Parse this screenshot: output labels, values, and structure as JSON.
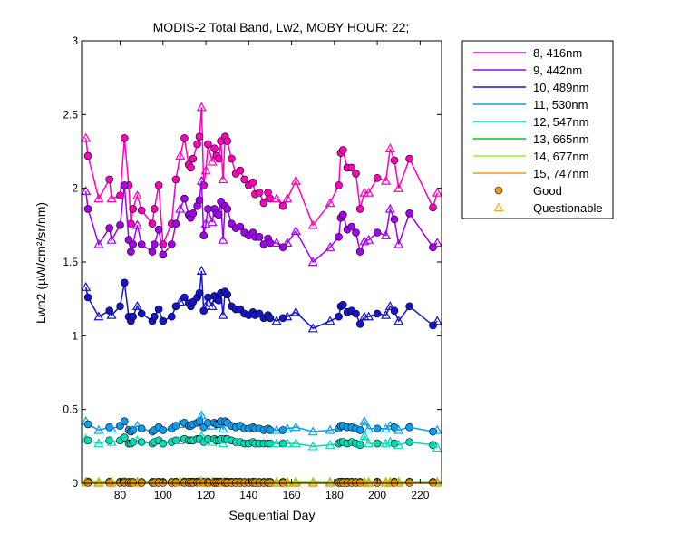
{
  "chart_data": {
    "type": "line",
    "title": "MODIS-2 Total Band, Lw2, MOBY HOUR: 22;",
    "xlabel": "Sequential Day",
    "ylabel": "Lwn2 (µW/cm²/sr/nm)",
    "xlim": [
      62,
      230
    ],
    "ylim": [
      0,
      3
    ],
    "xticks": [
      "80",
      "100",
      "120",
      "140",
      "160",
      "180",
      "200",
      "220"
    ],
    "xtick_values": [
      80,
      100,
      120,
      140,
      160,
      180,
      200,
      220
    ],
    "yticks": [
      "0",
      "0.5",
      "1",
      "1.5",
      "2",
      "2.5",
      "3"
    ],
    "ytick_values": [
      0,
      0.5,
      1,
      1.5,
      2,
      2.5,
      3
    ],
    "grid": false,
    "legend_position": "outside-top-right",
    "x": [
      64,
      65,
      70,
      75,
      76,
      80,
      82,
      84,
      85,
      86,
      88,
      90,
      95,
      96,
      98,
      100,
      104,
      106,
      108,
      110,
      112,
      113,
      114,
      116,
      117,
      118,
      119,
      120,
      121,
      123,
      124,
      125,
      126,
      127,
      128,
      129,
      130,
      132,
      134,
      136,
      138,
      140,
      142,
      143,
      145,
      147,
      149,
      150,
      153,
      156,
      158,
      162,
      170,
      178,
      182,
      183,
      184,
      186,
      188,
      190,
      192,
      194,
      196,
      200,
      204,
      206,
      208,
      210,
      215,
      226,
      228
    ],
    "series": [
      {
        "name": "8, 416nm",
        "color": "#ff00bb",
        "values": [
          2.34,
          2.22,
          1.93,
          2.06,
          1.93,
          1.95,
          2.34,
          2.02,
          1.76,
          1.86,
          1.95,
          1.85,
          1.76,
          1.86,
          2.02,
          1.62,
          1.76,
          2.06,
          2.22,
          2.34,
          2.16,
          2.14,
          2.2,
          2.3,
          2.35,
          2.55,
          2.02,
          2.12,
          2.3,
          2.18,
          2.27,
          2.22,
          2.2,
          2.32,
          2.06,
          2.35,
          2.32,
          2.2,
          2.1,
          2.12,
          2.06,
          2.02,
          2.04,
          1.96,
          1.97,
          1.9,
          1.97,
          1.93,
          1.93,
          1.88,
          1.93,
          2.05,
          1.75,
          1.9,
          2.02,
          2.24,
          2.26,
          2.14,
          2.14,
          2.1,
          1.86,
          1.97,
          1.97,
          2.07,
          2.05,
          2.27,
          2.19,
          2.0,
          2.2,
          1.87,
          1.97
        ]
      },
      {
        "name": "9, 442nm",
        "color": "#a400ee",
        "values": [
          1.98,
          1.86,
          1.62,
          1.73,
          1.65,
          1.75,
          2.02,
          1.65,
          1.57,
          1.62,
          1.75,
          1.62,
          1.57,
          1.62,
          1.72,
          1.55,
          1.62,
          1.76,
          1.86,
          1.93,
          1.82,
          1.8,
          1.83,
          1.88,
          1.92,
          2.05,
          1.68,
          1.76,
          1.86,
          1.77,
          1.86,
          1.83,
          1.82,
          1.91,
          1.65,
          1.88,
          1.86,
          1.76,
          1.73,
          1.74,
          1.7,
          1.68,
          1.7,
          1.67,
          1.67,
          1.62,
          1.66,
          1.63,
          1.63,
          1.6,
          1.63,
          1.71,
          1.5,
          1.6,
          1.67,
          1.8,
          1.82,
          1.72,
          1.74,
          1.7,
          1.57,
          1.64,
          1.65,
          1.7,
          1.68,
          1.86,
          1.79,
          1.62,
          1.83,
          1.6,
          1.63
        ]
      },
      {
        "name": "10, 489nm",
        "color": "#1515cc",
        "values": [
          1.33,
          1.26,
          1.13,
          1.17,
          1.14,
          1.2,
          1.36,
          1.13,
          1.1,
          1.13,
          1.2,
          1.15,
          1.1,
          1.13,
          1.18,
          1.1,
          1.13,
          1.2,
          1.23,
          1.26,
          1.22,
          1.2,
          1.23,
          1.26,
          1.29,
          1.44,
          1.17,
          1.2,
          1.26,
          1.2,
          1.27,
          1.25,
          1.24,
          1.29,
          1.14,
          1.3,
          1.28,
          1.2,
          1.18,
          1.18,
          1.15,
          1.14,
          1.16,
          1.14,
          1.15,
          1.12,
          1.14,
          1.12,
          1.1,
          1.12,
          1.13,
          1.16,
          1.05,
          1.1,
          1.13,
          1.2,
          1.21,
          1.16,
          1.17,
          1.15,
          1.08,
          1.13,
          1.13,
          1.15,
          1.14,
          1.2,
          1.17,
          1.1,
          1.2,
          1.07,
          1.1
        ]
      },
      {
        "name": "11, 530nm",
        "color": "#0a9eee",
        "values": [
          0.42,
          0.4,
          0.36,
          0.38,
          0.37,
          0.39,
          0.42,
          0.36,
          0.35,
          0.36,
          0.39,
          0.37,
          0.35,
          0.36,
          0.38,
          0.36,
          0.37,
          0.39,
          0.4,
          0.41,
          0.39,
          0.39,
          0.4,
          0.41,
          0.42,
          0.46,
          0.38,
          0.39,
          0.41,
          0.39,
          0.41,
          0.4,
          0.4,
          0.42,
          0.37,
          0.42,
          0.41,
          0.39,
          0.38,
          0.39,
          0.37,
          0.37,
          0.38,
          0.37,
          0.37,
          0.36,
          0.37,
          0.36,
          0.36,
          0.36,
          0.37,
          0.38,
          0.35,
          0.36,
          0.37,
          0.39,
          0.39,
          0.38,
          0.38,
          0.37,
          0.36,
          0.42,
          0.37,
          0.37,
          0.37,
          0.39,
          0.38,
          0.36,
          0.38,
          0.35,
          0.36
        ]
      },
      {
        "name": "12, 547nm",
        "color": "#00ddb6",
        "values": [
          0.3,
          0.29,
          0.27,
          0.29,
          0.28,
          0.29,
          0.31,
          0.27,
          0.27,
          0.28,
          0.29,
          0.28,
          0.27,
          0.28,
          0.29,
          0.27,
          0.28,
          0.29,
          0.29,
          0.3,
          0.29,
          0.29,
          0.29,
          0.3,
          0.3,
          0.32,
          0.28,
          0.29,
          0.3,
          0.28,
          0.3,
          0.29,
          0.29,
          0.3,
          0.27,
          0.3,
          0.3,
          0.29,
          0.28,
          0.28,
          0.27,
          0.27,
          0.28,
          0.27,
          0.27,
          0.27,
          0.27,
          0.27,
          0.27,
          0.27,
          0.27,
          0.27,
          0.25,
          0.26,
          0.27,
          0.28,
          0.28,
          0.27,
          0.28,
          0.27,
          0.26,
          0.32,
          0.27,
          0.27,
          0.27,
          0.28,
          0.27,
          0.26,
          0.28,
          0.26,
          0.24
        ]
      },
      {
        "name": "13, 665nm",
        "color": "#00cc22",
        "values": [
          0.012,
          0.012,
          0.01,
          0.011,
          0.01,
          0.011,
          0.013,
          0.01,
          0.01,
          0.01,
          0.011,
          0.01,
          0.01,
          0.01,
          0.011,
          0.01,
          0.01,
          0.011,
          0.012,
          0.012,
          0.011,
          0.011,
          0.012,
          0.012,
          0.013,
          0.014,
          0.011,
          0.011,
          0.012,
          0.011,
          0.012,
          0.012,
          0.011,
          0.012,
          0.01,
          0.012,
          0.012,
          0.011,
          0.011,
          0.011,
          0.01,
          0.01,
          0.011,
          0.01,
          0.01,
          0.01,
          0.01,
          0.01,
          0.01,
          0.01,
          0.01,
          0.011,
          0.009,
          0.01,
          0.01,
          0.011,
          0.011,
          0.011,
          0.011,
          0.01,
          0.01,
          0.011,
          0.01,
          0.011,
          0.01,
          0.011,
          0.011,
          0.01,
          0.011,
          0.01,
          0.01
        ]
      },
      {
        "name": "14, 677nm",
        "color": "#aaee22",
        "values": [
          0.01,
          0.01,
          0.009,
          0.009,
          0.009,
          0.009,
          0.011,
          0.009,
          0.008,
          0.009,
          0.009,
          0.009,
          0.008,
          0.009,
          0.009,
          0.008,
          0.009,
          0.009,
          0.01,
          0.01,
          0.009,
          0.009,
          0.01,
          0.01,
          0.011,
          0.012,
          0.009,
          0.009,
          0.01,
          0.009,
          0.01,
          0.01,
          0.009,
          0.01,
          0.009,
          0.01,
          0.01,
          0.009,
          0.009,
          0.009,
          0.009,
          0.009,
          0.009,
          0.009,
          0.009,
          0.008,
          0.009,
          0.008,
          0.008,
          0.008,
          0.009,
          0.009,
          0.008,
          0.008,
          0.009,
          0.009,
          0.009,
          0.009,
          0.009,
          0.009,
          0.008,
          0.009,
          0.009,
          0.009,
          0.009,
          0.009,
          0.009,
          0.008,
          0.009,
          0.008,
          0.008
        ]
      },
      {
        "name": "15, 747nm",
        "color": "#ee9911",
        "values": [
          0.004,
          0.004,
          0.003,
          0.003,
          0.003,
          0.003,
          0.004,
          0.003,
          0.003,
          0.003,
          0.003,
          0.003,
          0.003,
          0.003,
          0.003,
          0.003,
          0.003,
          0.003,
          0.004,
          0.004,
          0.003,
          0.003,
          0.004,
          0.004,
          0.004,
          0.005,
          0.003,
          0.003,
          0.004,
          0.003,
          0.004,
          0.004,
          0.003,
          0.004,
          0.003,
          0.004,
          0.004,
          0.003,
          0.003,
          0.003,
          0.003,
          0.003,
          0.003,
          0.003,
          0.003,
          0.003,
          0.003,
          0.003,
          0.003,
          0.003,
          0.003,
          0.003,
          0.003,
          0.003,
          0.003,
          0.003,
          0.003,
          0.003,
          0.003,
          0.003,
          0.003,
          0.003,
          0.003,
          0.003,
          0.003,
          0.003,
          0.003,
          0.003,
          0.003,
          0.003,
          0.003
        ]
      }
    ],
    "quality": [
      "Q",
      "G",
      "Q",
      "G",
      "Q",
      "G",
      "G",
      "G",
      "G",
      "G",
      "Q",
      "G",
      "G",
      "G",
      "G",
      "G",
      "G",
      "G",
      "Q",
      "G",
      "G",
      "G",
      "G",
      "G",
      "G",
      "Q",
      "G",
      "Q",
      "G",
      "Q",
      "G",
      "G",
      "G",
      "G",
      "Q",
      "G",
      "G",
      "G",
      "G",
      "G",
      "G",
      "G",
      "G",
      "G",
      "G",
      "G",
      "G",
      "G",
      "Q",
      "G",
      "Q",
      "Q",
      "Q",
      "Q",
      "G",
      "G",
      "G",
      "G",
      "G",
      "G",
      "G",
      "Q",
      "Q",
      "G",
      "Q",
      "Q",
      "G",
      "Q",
      "G",
      "G",
      "Q"
    ],
    "legend_entries": [
      {
        "label": "8, 416nm",
        "kind": "line",
        "color": "#ff00bb"
      },
      {
        "label": "9, 442nm",
        "kind": "line",
        "color": "#a400ee"
      },
      {
        "label": "10, 489nm",
        "kind": "line",
        "color": "#1515cc"
      },
      {
        "label": "11, 530nm",
        "kind": "line",
        "color": "#0a9eee"
      },
      {
        "label": "12, 547nm",
        "kind": "line",
        "color": "#00ddb6"
      },
      {
        "label": "13, 665nm",
        "kind": "line",
        "color": "#00cc22"
      },
      {
        "label": "14, 677nm",
        "kind": "line",
        "color": "#aaee22"
      },
      {
        "label": "15, 747nm",
        "kind": "line",
        "color": "#ee9911"
      },
      {
        "label": "Good",
        "kind": "circle",
        "color": "#ee9911"
      },
      {
        "label": "Questionable",
        "kind": "triangle",
        "color": "#ffaa00"
      }
    ]
  }
}
